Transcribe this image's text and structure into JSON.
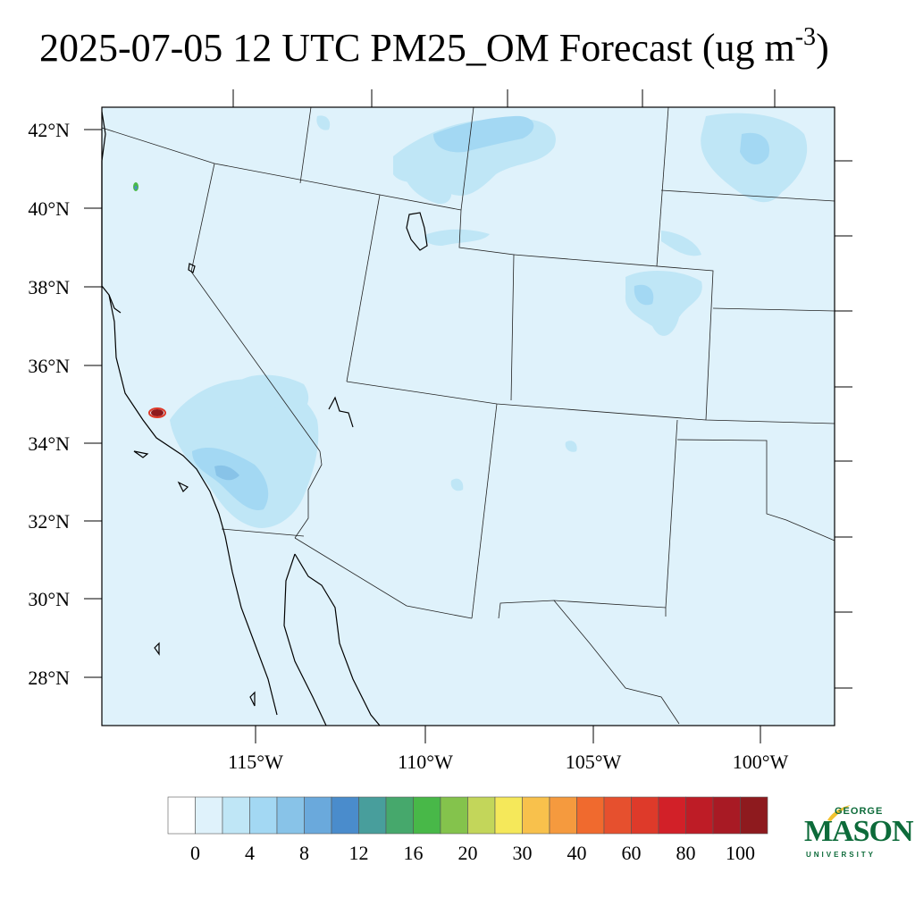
{
  "title": {
    "main": "2025-07-05 12 UTC PM25_OM Forecast (ug m",
    "superscript": "-3",
    "close": ")"
  },
  "map": {
    "background_color": "#dff2fb",
    "lat_ticks": [
      "42°N",
      "40°N",
      "38°N",
      "36°N",
      "34°N",
      "32°N",
      "30°N",
      "28°N"
    ],
    "lon_ticks": [
      "115°W",
      "110°W",
      "105°W",
      "100°W"
    ]
  },
  "colorbar": {
    "colors": [
      "#ffffff",
      "#dff2fb",
      "#bfe6f6",
      "#a3d8f3",
      "#88c3e8",
      "#6aa9dc",
      "#4a8ccc",
      "#489e9c",
      "#46a86c",
      "#48b848",
      "#84c34c",
      "#c3d65a",
      "#f5e85a",
      "#f8c14c",
      "#f59a3e",
      "#f06a2e",
      "#e6502e",
      "#de3a2a",
      "#d22028",
      "#be1c26",
      "#a81a24",
      "#8e1a1e"
    ],
    "labels": [
      "0",
      "4",
      "8",
      "12",
      "16",
      "20",
      "30",
      "40",
      "60",
      "80",
      "100"
    ]
  },
  "logo": {
    "line1": "GEORGE",
    "line2": "MASON",
    "line3": "UNIVERSITY"
  }
}
